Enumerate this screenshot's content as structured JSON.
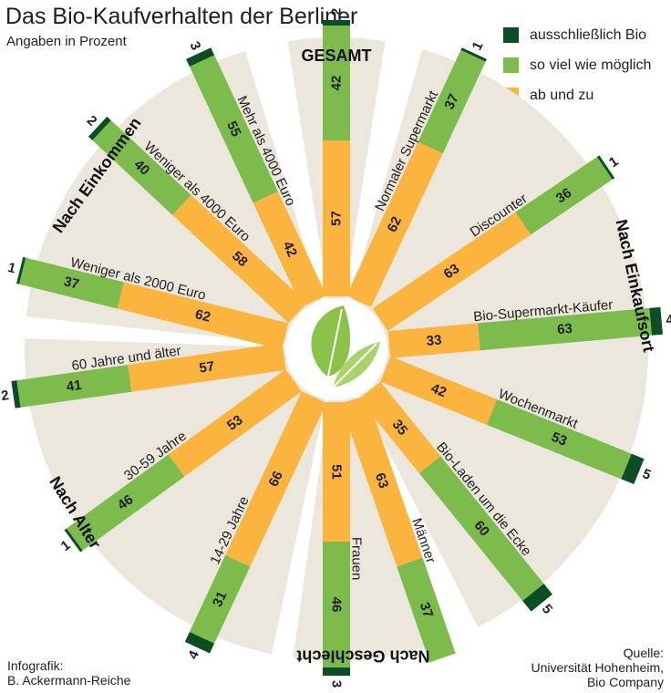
{
  "header": {
    "title": "Das Bio-Kaufverhalten der Berliner",
    "subtitle": "Angaben in Prozent"
  },
  "legend": [
    {
      "label": "ausschließlich Bio",
      "color": "#0b4d24"
    },
    {
      "label": "so viel wie möglich",
      "color": "#7dbb4c"
    },
    {
      "label": "ab und zu",
      "color": "#fbb43e"
    }
  ],
  "footer": {
    "credit_line1": "Infografik:",
    "credit_line2": "B. Ackermann-Reiche",
    "source_line1": "Quelle:",
    "source_line2": "Universität Hohenheim,",
    "source_line3": "Bio Company"
  },
  "colors": {
    "exclusive": "#0b4d24",
    "possible": "#7dbb4c",
    "sometimes": "#fbb43e",
    "wedge": "#ebe7dd",
    "leaf": "#8bc34a"
  },
  "chart_data": {
    "type": "bar",
    "title": "Das Bio-Kaufverhalten der Berliner",
    "subtitle": "Angaben in Prozent",
    "series_names": [
      "ausschließlich Bio",
      "so viel wie möglich",
      "ab und zu"
    ],
    "groups": [
      {
        "name": "GESAMT",
        "bars": [
          {
            "category": "",
            "ab_und_zu": 57,
            "so_viel_wie_moeglich": 42,
            "ausschliesslich_bio": 2
          }
        ]
      },
      {
        "name": "Nach Einkaufsort",
        "bars": [
          {
            "category": "Normaler Supermarkt",
            "ab_und_zu": 62,
            "so_viel_wie_moeglich": 37,
            "ausschliesslich_bio": 1
          },
          {
            "category": "Discounter",
            "ab_und_zu": 63,
            "so_viel_wie_moeglich": 36,
            "ausschliesslich_bio": 1
          },
          {
            "category": "Bio-Supermarkt-Käufer",
            "ab_und_zu": 33,
            "so_viel_wie_moeglich": 63,
            "ausschliesslich_bio": 4
          },
          {
            "category": "Wochenmarkt",
            "ab_und_zu": 42,
            "so_viel_wie_moeglich": 53,
            "ausschliesslich_bio": 5
          },
          {
            "category": "Bio-Laden um die Ecke",
            "ab_und_zu": 35,
            "so_viel_wie_moeglich": 60,
            "ausschliesslich_bio": 5
          }
        ]
      },
      {
        "name": "Nach Geschlecht",
        "bars": [
          {
            "category": "Männer",
            "ab_und_zu": 63,
            "so_viel_wie_moeglich": 37,
            "ausschliesslich_bio": null
          },
          {
            "category": "Frauen",
            "ab_und_zu": 51,
            "so_viel_wie_moeglich": 46,
            "ausschliesslich_bio": 3
          }
        ]
      },
      {
        "name": "Nach Alter",
        "bars": [
          {
            "category": "14-29 Jahre",
            "ab_und_zu": 66,
            "so_viel_wie_moeglich": 31,
            "ausschliesslich_bio": 4
          },
          {
            "category": "30-59 Jahre",
            "ab_und_zu": 53,
            "so_viel_wie_moeglich": 46,
            "ausschliesslich_bio": 1
          },
          {
            "category": "60 Jahre und älter",
            "ab_und_zu": 57,
            "so_viel_wie_moeglich": 41,
            "ausschliesslich_bio": 2
          }
        ]
      },
      {
        "name": "Nach Einkommen",
        "bars": [
          {
            "category": "Weniger als 2000 Euro",
            "ab_und_zu": 62,
            "so_viel_wie_moeglich": 37,
            "ausschliesslich_bio": 1
          },
          {
            "category": "Weniger als 4000 Euro",
            "ab_und_zu": 58,
            "so_viel_wie_moeglich": 40,
            "ausschliesslich_bio": 2
          },
          {
            "category": "Mehr als 4000 Euro",
            "ab_und_zu": 42,
            "so_viel_wie_moeglich": 55,
            "ausschliesslich_bio": 3
          }
        ]
      }
    ]
  }
}
